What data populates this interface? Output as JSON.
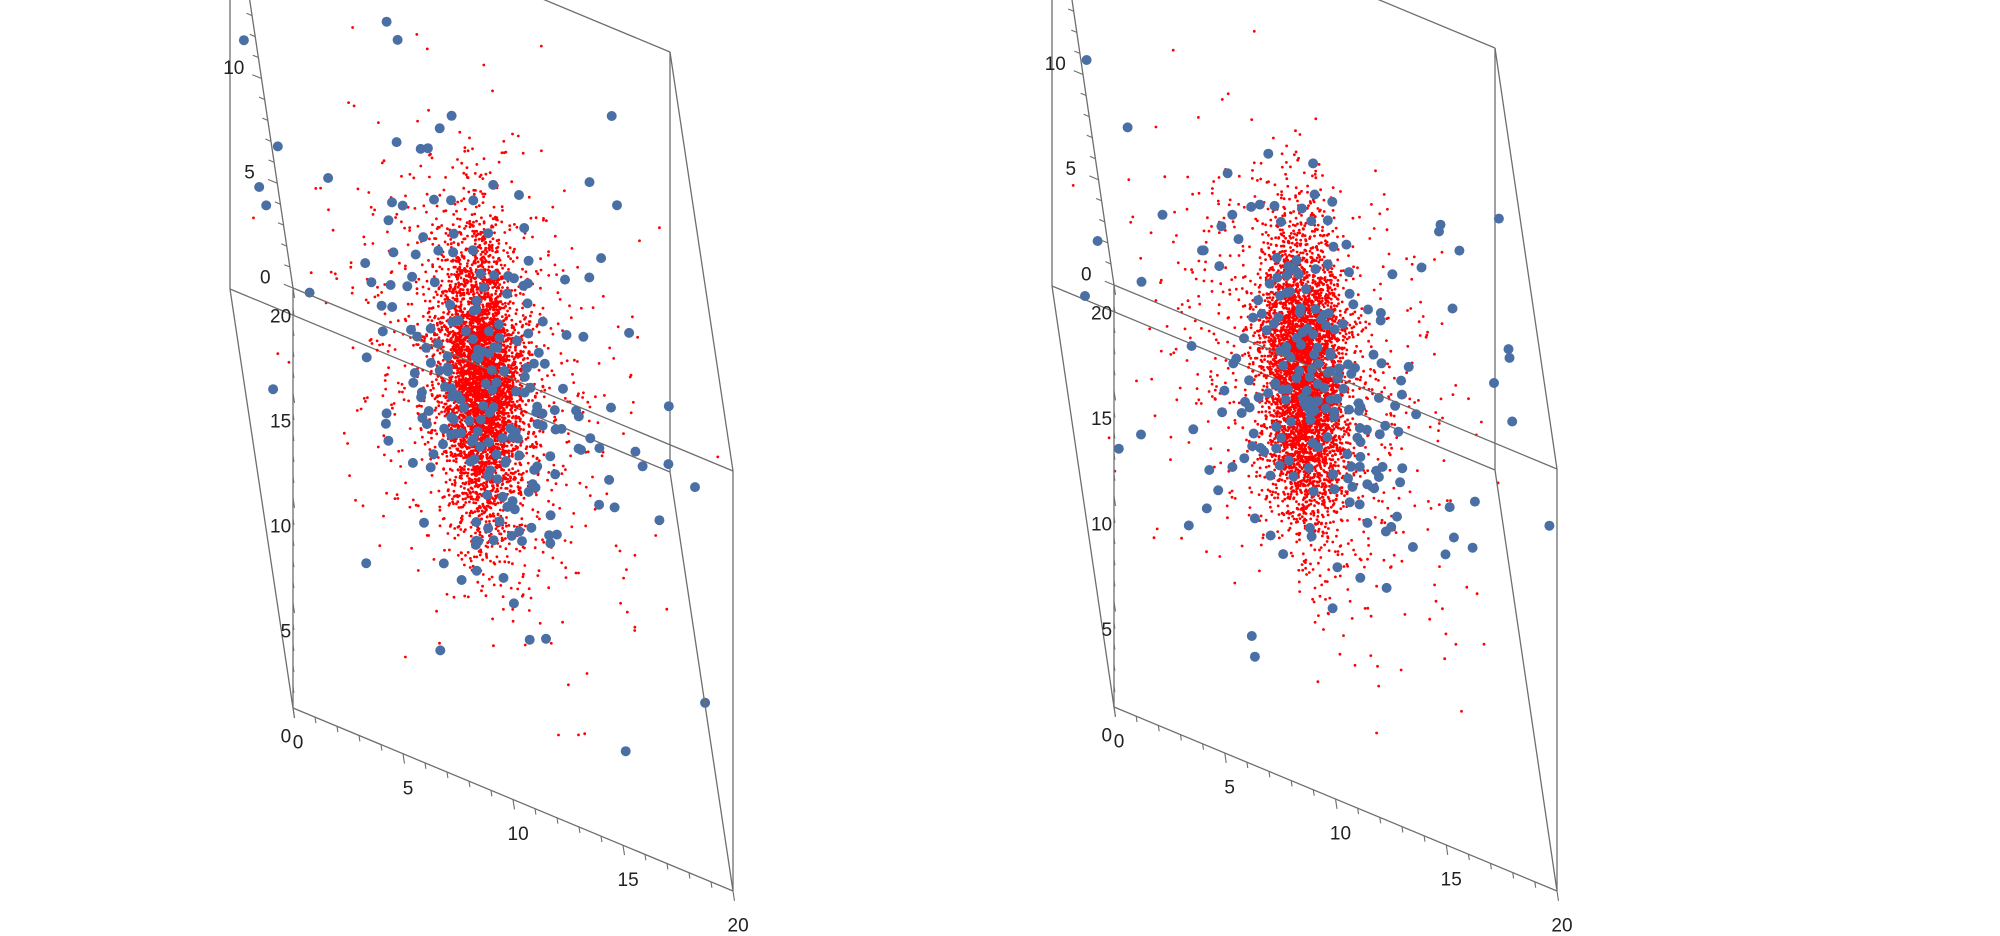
{
  "colors": {
    "background": "#ffffff",
    "box_edges": "#6e6e6e",
    "tick_text": "#222222",
    "dense_points": "#ff0000",
    "sparse_points": "#4a6fa5"
  },
  "chart_data": [
    {
      "type": "scatter",
      "dimensions": 3,
      "title": "",
      "xlabel": "",
      "ylabel": "",
      "zlabel": "",
      "xlim": [
        0,
        20
      ],
      "ylim": [
        0,
        20
      ],
      "zlim": [
        0,
        20
      ],
      "x_ticks": [
        "0",
        "5",
        "10",
        "15",
        "20"
      ],
      "y_ticks": [
        "0",
        "5",
        "10",
        "15",
        "20"
      ],
      "z_ticks": [
        "0",
        "5",
        "10",
        "15",
        "20"
      ],
      "grid": false,
      "legend": "none",
      "series": [
        {
          "marker": "small dot",
          "color": "#ff0000",
          "approx_point_count": 5000,
          "distribution": "dense vertical column centered near x=10, y=10, most points within about 1 unit radius, spanning z of roughly 3 to 17, sparse halo out to about 5 units"
        },
        {
          "marker": "large dot",
          "color": "#4a6fa5",
          "approx_point_count": 220,
          "distribution": "loosely concentrated around the column near x=10, y=10, scattered across the full 0 to 20 box, z spanning about 2 to 18"
        }
      ]
    },
    {
      "type": "scatter",
      "dimensions": 3,
      "title": "",
      "xlabel": "",
      "ylabel": "",
      "zlabel": "",
      "xlim": [
        0,
        20
      ],
      "ylim": [
        0,
        20
      ],
      "zlim": [
        0,
        20
      ],
      "x_ticks": [
        "0",
        "5",
        "10",
        "15",
        "20"
      ],
      "y_ticks": [
        "0",
        "5",
        "10",
        "15",
        "20"
      ],
      "z_ticks": [
        "0",
        "5",
        "10",
        "15",
        "20"
      ],
      "grid": false,
      "legend": "none",
      "series": [
        {
          "marker": "small dot",
          "color": "#ff0000",
          "approx_point_count": 5000,
          "distribution": "dense vertical column centered near x=10, y=10, most points within about 1 unit radius, spanning z of roughly 3 to 17, sparse halo out to about 5 units"
        },
        {
          "marker": "large dot",
          "color": "#4a6fa5",
          "approx_point_count": 220,
          "distribution": "loosely concentrated around the column near x=10, y=10, scattered across the full 0 to 20 box, z spanning about 2 to 18"
        }
      ]
    }
  ]
}
